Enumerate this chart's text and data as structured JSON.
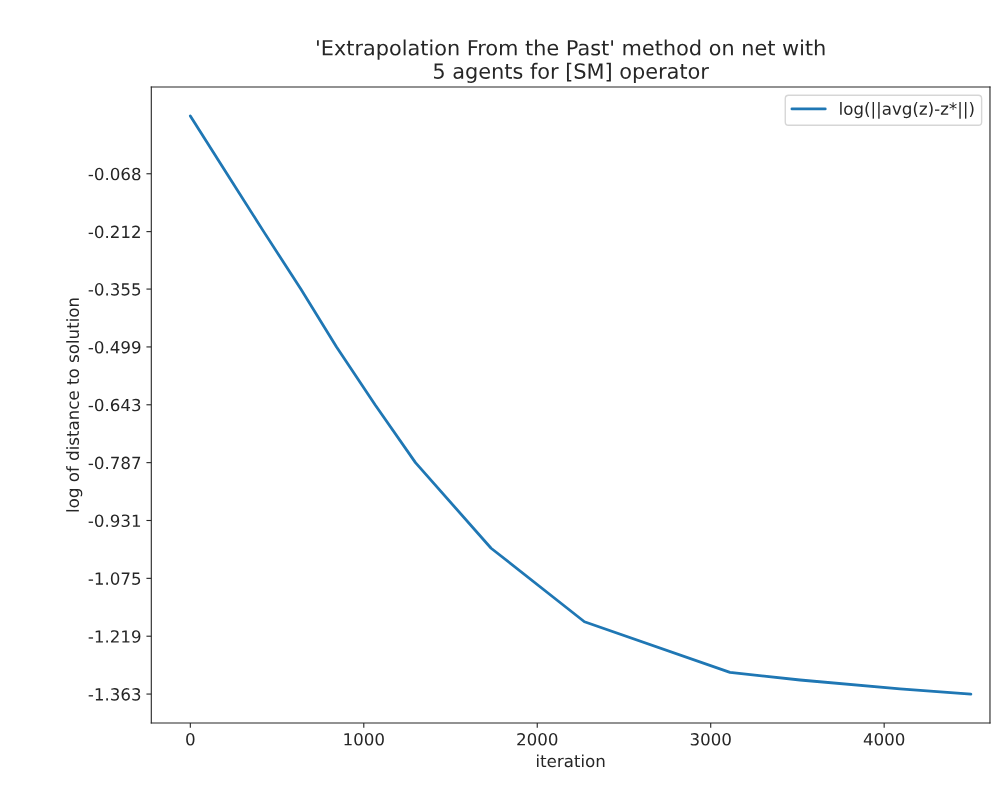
{
  "chart_data": {
    "type": "line",
    "title": "'Extrapolation From the Past' method on net with\n5 agents for [SM] operator",
    "xlabel": "iteration",
    "ylabel": "log of distance to solution",
    "x": [
      0,
      211,
      423,
      637,
      843,
      1065,
      1298,
      1734,
      2272,
      3111,
      3515,
      4091,
      4500
    ],
    "series": [
      {
        "name": "log(||avg(z)-z*||)",
        "color": "#1f77b4",
        "values": [
          0.076,
          -0.068,
          -0.212,
          -0.355,
          -0.499,
          -0.643,
          -0.787,
          -1.0,
          -1.183,
          -1.309,
          -1.328,
          -1.35,
          -1.363
        ]
      }
    ],
    "xlim": [
      -225,
      4610
    ],
    "xticks": [
      0,
      1000,
      2000,
      3000,
      4000
    ],
    "ylim": [
      -1.435,
      0.148
    ],
    "yticks": [
      -0.068,
      -0.212,
      -0.355,
      -0.499,
      -0.643,
      -0.787,
      -0.931,
      -1.075,
      -1.219,
      -1.363
    ],
    "grid": false,
    "legend": "top right",
    "marker": "none",
    "line_style": "solid"
  }
}
